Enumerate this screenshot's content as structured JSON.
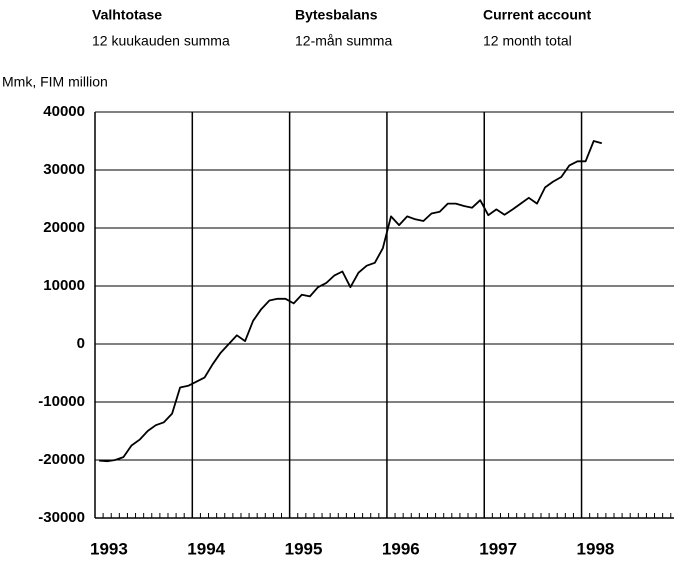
{
  "chart_data": {
    "type": "line",
    "headers": [
      {
        "title": "Valhtotase",
        "subtitle": "12 kuukauden summa"
      },
      {
        "title": "Bytesbalans",
        "subtitle": "12-mån summa"
      },
      {
        "title": "Current account",
        "subtitle": "12 month total"
      }
    ],
    "y_label": "Mmk, FIM million",
    "x": [
      1993.042,
      1993.125,
      1993.208,
      1993.292,
      1993.375,
      1993.458,
      1993.542,
      1993.625,
      1993.708,
      1993.792,
      1993.875,
      1993.958,
      1994.042,
      1994.125,
      1994.208,
      1994.292,
      1994.375,
      1994.458,
      1994.542,
      1994.625,
      1994.708,
      1994.792,
      1994.875,
      1994.958,
      1995.042,
      1995.125,
      1995.208,
      1995.292,
      1995.375,
      1995.458,
      1995.542,
      1995.625,
      1995.708,
      1995.792,
      1995.875,
      1995.958,
      1996.042,
      1996.125,
      1996.208,
      1996.292,
      1996.375,
      1996.458,
      1996.542,
      1996.625,
      1996.708,
      1996.792,
      1996.875,
      1996.958,
      1997.042,
      1997.125,
      1997.208,
      1997.292,
      1997.375,
      1997.458,
      1997.542,
      1997.625,
      1997.708,
      1997.792,
      1997.875,
      1997.958,
      1998.042,
      1998.125,
      1998.208
    ],
    "values": [
      -20100,
      -20200,
      -20000,
      -19500,
      -17500,
      -16500,
      -15000,
      -14000,
      -13500,
      -12000,
      -7500,
      -7200,
      -6500,
      -5800,
      -3500,
      -1500,
      0,
      1500,
      500,
      4000,
      6000,
      7500,
      7800,
      7800,
      7000,
      8500,
      8200,
      9800,
      10500,
      11800,
      12500,
      9800,
      12300,
      13500,
      14000,
      16500,
      22000,
      20500,
      22000,
      21500,
      21200,
      22500,
      22800,
      24200,
      24200,
      23800,
      23500,
      24800,
      22200,
      23200,
      22300,
      23200,
      24200,
      25200,
      24200,
      27000,
      28000,
      28800,
      30800,
      31500,
      31500,
      35000,
      34600
    ],
    "color": "#000000",
    "xlim": [
      1993,
      1998.95
    ],
    "xticks": [
      1993,
      1994,
      1995,
      1996,
      1997,
      1998
    ],
    "ylim": [
      -30000,
      40000
    ],
    "yticks": [
      -30000,
      -20000,
      -10000,
      0,
      10000,
      20000,
      30000,
      40000
    ],
    "grid": true
  }
}
